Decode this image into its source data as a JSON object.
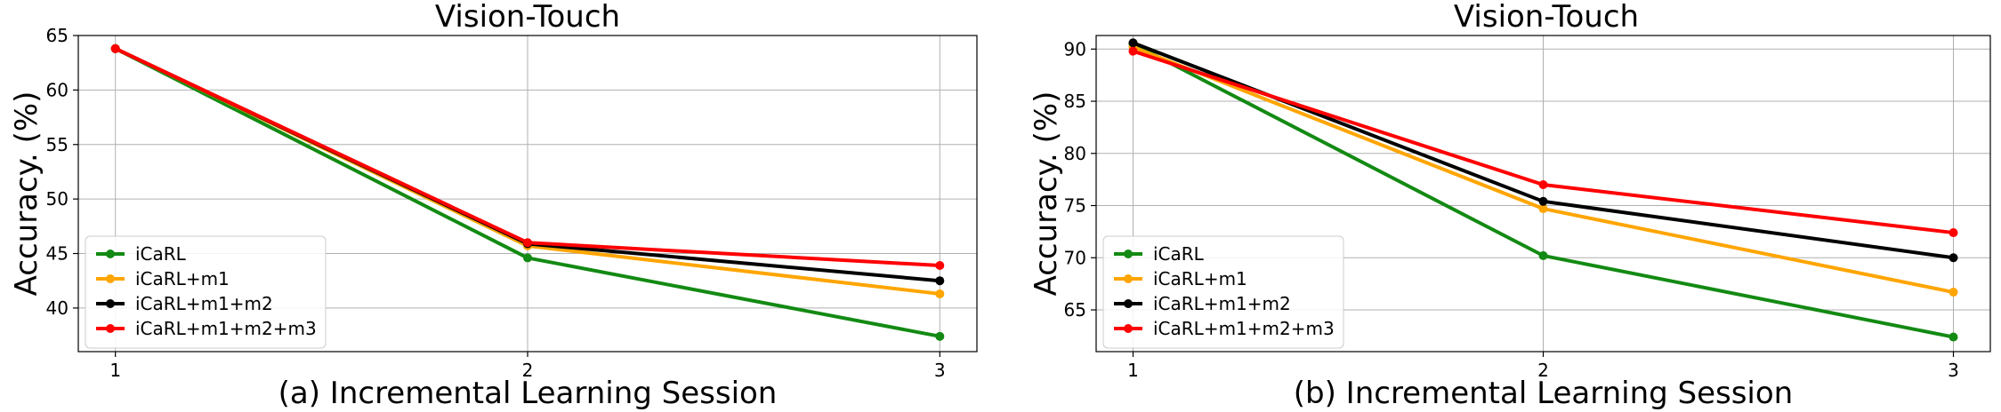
{
  "chart_data": [
    {
      "type": "line",
      "title": "Vision-Touch",
      "xlabel": "(a) Incremental Learning Session",
      "ylabel": "Accuracy. (%)",
      "x": [
        1,
        2,
        3
      ],
      "xticks": [
        1,
        2,
        3
      ],
      "yticks": [
        40,
        45,
        50,
        55,
        60,
        65
      ],
      "ylim": [
        36,
        65
      ],
      "grid": true,
      "legend": "lower-left",
      "series": [
        {
          "name": "iCaRL",
          "color": "#138a13",
          "values": [
            63.8,
            44.6,
            37.4
          ]
        },
        {
          "name": "iCaRL+m1",
          "color": "#ffa500",
          "values": [
            63.8,
            45.7,
            41.3
          ]
        },
        {
          "name": "iCaRL+m1+m2",
          "color": "#000000",
          "values": [
            63.8,
            45.9,
            42.5
          ]
        },
        {
          "name": "iCaRL+m1+m2+m3",
          "color": "#ff0000",
          "values": [
            63.8,
            46.0,
            43.9
          ]
        }
      ]
    },
    {
      "type": "line",
      "title": "Vision-Touch",
      "xlabel": "(b) Incremental Learning Session",
      "ylabel": "Accuracy. (%)",
      "x": [
        1,
        2,
        3
      ],
      "xticks": [
        1,
        2,
        3
      ],
      "yticks": [
        65,
        70,
        75,
        80,
        85,
        90
      ],
      "ylim": [
        61,
        91.3
      ],
      "grid": true,
      "legend": "lower-left",
      "series": [
        {
          "name": "iCaRL",
          "color": "#138a13",
          "values": [
            90.5,
            70.2,
            62.4
          ]
        },
        {
          "name": "iCaRL+m1",
          "color": "#ffa500",
          "values": [
            90.2,
            74.7,
            66.7
          ]
        },
        {
          "name": "iCaRL+m1+m2",
          "color": "#000000",
          "values": [
            90.6,
            75.4,
            70.0
          ]
        },
        {
          "name": "iCaRL+m1+m2+m3",
          "color": "#ff0000",
          "values": [
            89.8,
            77.0,
            72.4
          ]
        }
      ]
    }
  ]
}
